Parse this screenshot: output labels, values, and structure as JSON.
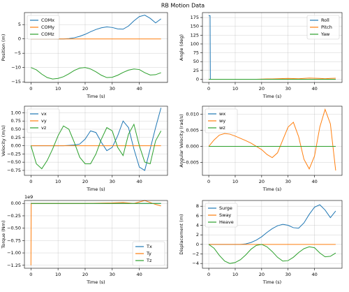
{
  "title": "RB Motion Data",
  "chart_data": [
    {
      "type": "line",
      "ylabel": "Position (m)",
      "xlabel": "Time (s)",
      "legend": "upper left",
      "xlim": [
        -2.4,
        50.4
      ],
      "xticks": [
        0,
        10,
        20,
        30,
        40
      ],
      "ylim": [
        -15.2,
        9.2
      ],
      "yticks": [
        {
          "value": -15,
          "label": "−15"
        },
        {
          "value": -10,
          "label": "−10"
        },
        {
          "value": -5,
          "label": "−5"
        },
        0,
        5
      ],
      "grid": true,
      "x": [
        0,
        2,
        4,
        6,
        8,
        10,
        12,
        14,
        16,
        18,
        20,
        22,
        24,
        26,
        28,
        30,
        32,
        34,
        36,
        38,
        40,
        42,
        44,
        46,
        48
      ],
      "series": [
        {
          "name": "COMx",
          "color": "#1f77b4",
          "values": [
            0,
            0,
            0,
            0,
            0,
            0,
            0,
            0.1,
            0.4,
            0.9,
            1.6,
            2.5,
            3.3,
            3.9,
            4.2,
            4.0,
            3.5,
            3.4,
            4.5,
            6.3,
            7.8,
            8.3,
            7.2,
            5.6,
            7.0
          ]
        },
        {
          "name": "COMy",
          "color": "#ff7f0e",
          "values": [
            0,
            0,
            0,
            0,
            0,
            0,
            0,
            0,
            0,
            0,
            0,
            0,
            0,
            0,
            0,
            0,
            0,
            0,
            0,
            0,
            0,
            0,
            0,
            0,
            0
          ]
        },
        {
          "name": "COMz",
          "color": "#2ca02c",
          "values": [
            -10,
            -10.8,
            -12.3,
            -13.5,
            -14,
            -13.8,
            -13.2,
            -12.2,
            -11.0,
            -10.2,
            -10.0,
            -10.5,
            -11.5,
            -12.7,
            -13.5,
            -13.4,
            -12.7,
            -11.7,
            -10.9,
            -10.5,
            -10.7,
            -11.8,
            -12.6,
            -12.5,
            -11.8
          ]
        }
      ]
    },
    {
      "type": "line",
      "ylabel": "Angle (deg)",
      "xlabel": "Time (s)",
      "legend": "upper right",
      "xlim": [
        -2.4,
        50.4
      ],
      "xticks": [
        0,
        10,
        20,
        30,
        40
      ],
      "ylim": [
        -9,
        189
      ],
      "yticks": [
        0,
        25,
        50,
        75,
        100,
        125,
        150,
        175
      ],
      "grid": true,
      "x": [
        0,
        2,
        4,
        6,
        8,
        10,
        12,
        14,
        16,
        18,
        20,
        22,
        24,
        26,
        28,
        30,
        32,
        34,
        36,
        38,
        40,
        42,
        44,
        46,
        48
      ],
      "series": [
        {
          "name": "Roll",
          "color": "#1f77b4",
          "x": [
            0,
            0.5,
            0.6,
            48
          ],
          "values": [
            180,
            180,
            0,
            0
          ]
        },
        {
          "name": "Pitch",
          "color": "#ff7f0e",
          "values": [
            0,
            0,
            0,
            0,
            0,
            0,
            0,
            0,
            0,
            0,
            0.5,
            0.8,
            1.0,
            1.5,
            2,
            2.5,
            2,
            1.5,
            2.5,
            3.5,
            3,
            2.5,
            1.5,
            2.5,
            3
          ]
        },
        {
          "name": "Yaw",
          "color": "#2ca02c",
          "values": [
            0,
            0,
            0,
            0,
            0,
            0,
            0,
            0,
            0,
            0,
            0,
            0,
            0,
            0,
            0,
            0,
            0,
            0,
            0,
            0,
            0,
            0,
            0,
            0,
            0
          ]
        }
      ]
    },
    {
      "type": "line",
      "ylabel": "Velocity (m/s)",
      "xlabel": "Time (s)",
      "legend": "upper left",
      "xlim": [
        -2.4,
        50.4
      ],
      "xticks": [
        0,
        10,
        20,
        30,
        40
      ],
      "ylim": [
        -0.9,
        1.2
      ],
      "yticks": [
        {
          "value": -0.75,
          "label": "−0.75"
        },
        {
          "value": -0.5,
          "label": "−0.50"
        },
        {
          "value": -0.25,
          "label": "−0.25"
        },
        {
          "value": 0,
          "label": "0.00"
        },
        0.25,
        {
          "value": 0.5,
          "label": "0.50"
        },
        0.75,
        {
          "value": 1,
          "label": "1.00"
        }
      ],
      "grid": true,
      "x": [
        0,
        2,
        4,
        6,
        8,
        10,
        12,
        14,
        16,
        18,
        20,
        22,
        24,
        26,
        28,
        30,
        32,
        34,
        36,
        38,
        40,
        42,
        44,
        46,
        48
      ],
      "series": [
        {
          "name": "vx",
          "color": "#1f77b4",
          "values": [
            0,
            0,
            0,
            0,
            0,
            0,
            0,
            0.01,
            0.02,
            0.05,
            0.2,
            0.45,
            0.4,
            0.1,
            -0.15,
            -0.05,
            0.3,
            0.75,
            0.55,
            -0.1,
            -0.65,
            -0.75,
            -0.1,
            0.55,
            1.15
          ]
        },
        {
          "name": "vy",
          "color": "#ff7f0e",
          "values": [
            0,
            0,
            0,
            0,
            0,
            0,
            0,
            0,
            0,
            0,
            0,
            0,
            0,
            0,
            0,
            0,
            0,
            0,
            0,
            0,
            0,
            0,
            0,
            0,
            0
          ]
        },
        {
          "name": "vz",
          "color": "#2ca02c",
          "values": [
            0,
            -0.55,
            -0.7,
            -0.45,
            -0.1,
            0.3,
            0.6,
            0.5,
            0.1,
            -0.35,
            -0.55,
            -0.55,
            -0.25,
            0.2,
            0.55,
            0.45,
            -0.05,
            -0.3,
            0.35,
            0.65,
            0.0,
            -0.5,
            -0.55,
            0.15,
            0.45
          ]
        }
      ]
    },
    {
      "type": "line",
      "ylabel": "Angular Velocity (rad/s)",
      "xlabel": "Time (s)",
      "legend": "upper left",
      "xlim": [
        -2.4,
        50.4
      ],
      "xticks": [
        0,
        10,
        20,
        30,
        40
      ],
      "ylim": [
        -0.009,
        0.0125
      ],
      "yticks": [
        {
          "value": -0.005,
          "label": "−0.005"
        },
        {
          "value": 0,
          "label": "0.000"
        },
        0.005,
        {
          "value": 0.01,
          "label": "0.010"
        }
      ],
      "grid": true,
      "x": [
        0,
        2,
        4,
        6,
        8,
        10,
        12,
        14,
        16,
        18,
        20,
        22,
        24,
        26,
        28,
        30,
        32,
        34,
        36,
        38,
        40,
        42,
        44,
        46,
        48
      ],
      "series": [
        {
          "name": "wx",
          "color": "#1f77b4",
          "values": [
            0,
            0,
            0,
            0,
            0,
            0,
            0,
            0,
            0,
            0,
            0,
            0,
            0,
            0,
            0,
            0,
            0,
            0,
            0,
            0,
            0,
            0,
            0,
            0,
            0
          ]
        },
        {
          "name": "wy",
          "color": "#ff7f0e",
          "values": [
            0,
            0.002,
            0.0035,
            0.004,
            0.0038,
            0.0032,
            0.0025,
            0.0018,
            0.001,
            0,
            -0.001,
            -0.0025,
            -0.0035,
            -0.002,
            0.002,
            0.006,
            0.0075,
            0.003,
            -0.004,
            -0.007,
            -0.003,
            0.006,
            0.0115,
            0.007,
            -0.0075
          ]
        },
        {
          "name": "wz",
          "color": "#2ca02c",
          "values": [
            0,
            0,
            0,
            0,
            0,
            0,
            0,
            0,
            0,
            0,
            0,
            0,
            0,
            0,
            0,
            0,
            0,
            0,
            0,
            0,
            0,
            0,
            0,
            0,
            0
          ]
        }
      ]
    },
    {
      "type": "line",
      "ylabel": "Torque (Nm)",
      "xlabel": "Time (s)",
      "legend": "lower right",
      "offset_label": "1e9",
      "xlim": [
        -2.4,
        50.4
      ],
      "xticks": [
        0,
        10,
        20,
        30,
        40
      ],
      "ylim": [
        -1310000000,
        60000000
      ],
      "yticks": [
        {
          "value": -1250000000,
          "label": "−1.25"
        },
        {
          "value": -1000000000,
          "label": "−1.00"
        },
        {
          "value": -750000000,
          "label": "−0.75"
        },
        {
          "value": -500000000,
          "label": "−0.50"
        },
        {
          "value": -250000000,
          "label": "−0.25"
        },
        {
          "value": 0,
          "label": "0.00"
        }
      ],
      "grid": true,
      "x": [
        0,
        2,
        4,
        6,
        8,
        10,
        12,
        14,
        16,
        18,
        20,
        22,
        24,
        26,
        28,
        30,
        32,
        34,
        36,
        38,
        40,
        42,
        44,
        46,
        48
      ],
      "series": [
        {
          "name": "Tx",
          "color": "#1f77b4",
          "values": [
            0,
            0,
            0,
            0,
            0,
            0,
            0,
            0,
            0,
            0,
            0,
            0,
            0,
            0,
            0,
            0,
            0,
            0,
            0,
            0,
            0,
            0,
            0,
            0,
            0
          ]
        },
        {
          "name": "Ty",
          "color": "#ff7f0e",
          "x": [
            0,
            0.1,
            20,
            30,
            34,
            38,
            42,
            44,
            46,
            48
          ],
          "values": [
            -1250000000,
            0,
            0,
            10000000,
            20000000,
            0,
            60000000,
            20000000,
            -20000000,
            -50000000
          ]
        },
        {
          "name": "Tz",
          "color": "#2ca02c",
          "values": [
            0,
            0,
            0,
            0,
            0,
            0,
            0,
            0,
            0,
            0,
            0,
            0,
            0,
            0,
            0,
            0,
            0,
            0,
            0,
            0,
            0,
            0,
            0,
            0,
            0
          ]
        }
      ]
    },
    {
      "type": "line",
      "ylabel": "Displacement (m)",
      "xlabel": "Time (s)",
      "legend": "upper left",
      "xlim": [
        -2.4,
        50.4
      ],
      "xticks": [
        0,
        10,
        20,
        30,
        40
      ],
      "ylim": [
        -5,
        9.2
      ],
      "yticks": [
        {
          "value": -4,
          "label": "−4"
        },
        {
          "value": -2,
          "label": "−2"
        },
        0,
        2,
        4,
        6,
        8
      ],
      "grid": true,
      "x": [
        0,
        2,
        4,
        6,
        8,
        10,
        12,
        14,
        16,
        18,
        20,
        22,
        24,
        26,
        28,
        30,
        32,
        34,
        36,
        38,
        40,
        42,
        44,
        46,
        48
      ],
      "series": [
        {
          "name": "Surge",
          "color": "#1f77b4",
          "values": [
            0,
            0,
            0,
            0,
            0,
            0,
            0,
            0.1,
            0.4,
            0.9,
            1.6,
            2.5,
            3.3,
            3.9,
            4.2,
            4.0,
            3.5,
            3.4,
            4.5,
            6.3,
            7.8,
            8.3,
            7.2,
            5.6,
            7.0
          ]
        },
        {
          "name": "Sway",
          "color": "#ff7f0e",
          "values": [
            0,
            0,
            0,
            0,
            0,
            0,
            0,
            0,
            0,
            0,
            0,
            0,
            0,
            0,
            0,
            0,
            0,
            0,
            0,
            0,
            0,
            0,
            0,
            0,
            0
          ]
        },
        {
          "name": "Heave",
          "color": "#2ca02c",
          "values": [
            0,
            -0.8,
            -2.3,
            -3.5,
            -4,
            -3.8,
            -3.2,
            -2.2,
            -1.0,
            -0.2,
            0,
            -0.5,
            -1.5,
            -2.7,
            -3.5,
            -3.4,
            -2.7,
            -1.7,
            -0.9,
            -0.5,
            -0.7,
            -1.8,
            -2.6,
            -2.5,
            -1.8
          ]
        }
      ]
    }
  ]
}
